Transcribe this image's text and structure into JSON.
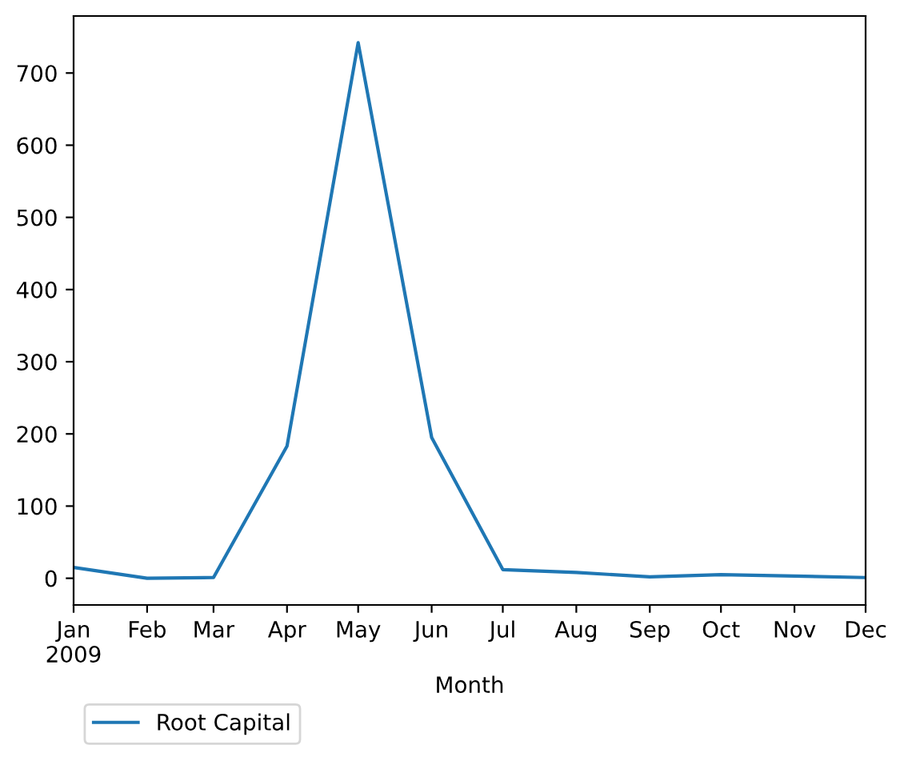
{
  "chart_data": {
    "type": "line",
    "xlabel": "Month",
    "x": [
      "2009-01",
      "2009-02",
      "2009-03",
      "2009-04",
      "2009-05",
      "2009-06",
      "2009-07",
      "2009-08",
      "2009-09",
      "2009-10",
      "2009-11",
      "2009-12"
    ],
    "series": [
      {
        "name": "Root Capital",
        "color": "#1f77b4",
        "values": [
          15,
          0,
          1,
          183,
          742,
          195,
          12,
          8,
          2,
          5,
          3,
          1
        ]
      }
    ],
    "xlim": [
      "2009-01",
      "2009-12"
    ],
    "xticks": [
      {
        "value": "2009-01",
        "label": "Jan\n2009"
      },
      {
        "value": "2009-02",
        "label": "Feb"
      },
      {
        "value": "2009-03",
        "label": "Mar"
      },
      {
        "value": "2009-04",
        "label": "Apr"
      },
      {
        "value": "2009-05",
        "label": "May"
      },
      {
        "value": "2009-06",
        "label": "Jun"
      },
      {
        "value": "2009-07",
        "label": "Jul"
      },
      {
        "value": "2009-08",
        "label": "Aug"
      },
      {
        "value": "2009-09",
        "label": "Sep"
      },
      {
        "value": "2009-10",
        "label": "Oct"
      },
      {
        "value": "2009-11",
        "label": "Nov"
      },
      {
        "value": "2009-12",
        "label": "Dec"
      }
    ],
    "ylim": [
      -37,
      779
    ],
    "yticks": [
      0,
      100,
      200,
      300,
      400,
      500,
      600,
      700
    ],
    "legend": "bottom left",
    "grid": false
  }
}
